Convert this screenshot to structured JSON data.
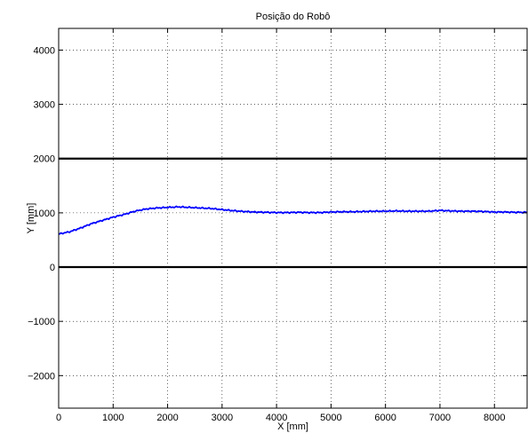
{
  "chart_data": {
    "type": "line",
    "title": "Posição do Robô",
    "xlabel": "X [mm]",
    "ylabel": "Y [mm]",
    "xlim": [
      0,
      8600
    ],
    "ylim": [
      -2600,
      4400
    ],
    "xticks": [
      0,
      1000,
      2000,
      3000,
      4000,
      5000,
      6000,
      7000,
      8000
    ],
    "yticks": [
      -2000,
      -1000,
      0,
      1000,
      2000,
      3000,
      4000
    ],
    "xtick_labels": [
      "0",
      "1000",
      "2000",
      "3000",
      "4000",
      "5000",
      "6000",
      "7000",
      "8000"
    ],
    "ytick_labels": [
      "−2000",
      "−1000",
      "0",
      "1000",
      "2000",
      "3000",
      "4000"
    ],
    "grid": true,
    "reference_lines": [
      {
        "y": 2000,
        "color": "#000000"
      },
      {
        "y": 0,
        "color": "#000000"
      }
    ],
    "series": [
      {
        "color": "#0000ff",
        "x": [
          0,
          200,
          400,
          600,
          800,
          1000,
          1200,
          1400,
          1600,
          1800,
          2000,
          2200,
          2400,
          2600,
          2800,
          3000,
          3200,
          3400,
          3600,
          3800,
          4000,
          4200,
          4400,
          4600,
          4800,
          5000,
          5200,
          5400,
          5600,
          5800,
          6000,
          6200,
          6400,
          6600,
          6800,
          7000,
          7200,
          7400,
          7600,
          7800,
          8000,
          8200,
          8400,
          8600
        ],
        "y": [
          610,
          650,
          720,
          800,
          860,
          920,
          970,
          1030,
          1070,
          1090,
          1100,
          1110,
          1100,
          1090,
          1080,
          1060,
          1040,
          1025,
          1015,
          1010,
          1005,
          1005,
          1010,
          1005,
          1005,
          1015,
          1020,
          1020,
          1025,
          1030,
          1030,
          1035,
          1030,
          1030,
          1030,
          1045,
          1035,
          1030,
          1030,
          1025,
          1015,
          1015,
          1010,
          1010
        ]
      }
    ]
  }
}
